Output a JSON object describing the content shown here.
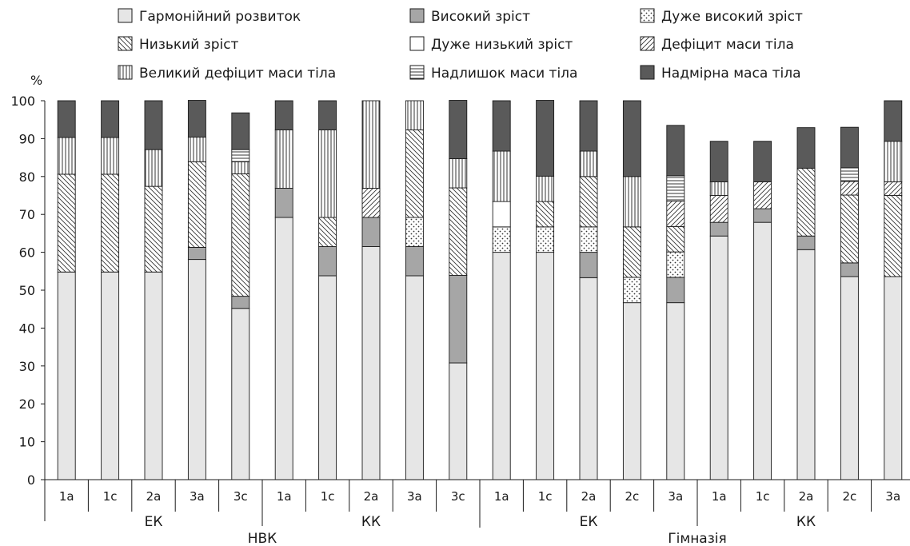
{
  "chart_data": {
    "type": "bar",
    "stacked": true,
    "ylabel": "%",
    "ylim": [
      0,
      100
    ],
    "yticks": [
      0,
      10,
      20,
      30,
      40,
      50,
      60,
      70,
      80,
      90,
      100
    ],
    "grid": false,
    "legend_position": "top",
    "categories": [
      "1а",
      "1с",
      "2а",
      "3а",
      "3с",
      "1а",
      "1с",
      "2а",
      "3а",
      "3с",
      "1а",
      "1с",
      "2а",
      "2с",
      "3а",
      "1а",
      "1с",
      "2а",
      "2с",
      "3а"
    ],
    "sub_groups": [
      {
        "label": "ЕК",
        "start": 0,
        "end": 4
      },
      {
        "label": "КК",
        "start": 5,
        "end": 9
      },
      {
        "label": "ЕК",
        "start": 10,
        "end": 14
      },
      {
        "label": "КК",
        "start": 15,
        "end": 19
      }
    ],
    "top_groups": [
      {
        "label": "НВК",
        "start": 0,
        "end": 9
      },
      {
        "label": "Гімназія",
        "start": 10,
        "end": 19
      }
    ],
    "series": [
      {
        "name": "Гармонійний розвиток",
        "color": "#e6e6e6",
        "pattern": "solid-light",
        "values": [
          54.8,
          54.8,
          54.8,
          58.1,
          45.2,
          69.2,
          53.8,
          61.5,
          53.8,
          30.8,
          60.0,
          60.0,
          53.3,
          46.7,
          46.7,
          64.3,
          67.9,
          60.7,
          53.6,
          53.6
        ]
      },
      {
        "name": "Високий зріст",
        "color": "#a6a6a6",
        "pattern": "solid-mid",
        "values": [
          0,
          0,
          0,
          3.2,
          3.2,
          7.7,
          7.7,
          7.7,
          7.7,
          23.1,
          0,
          0,
          6.7,
          0,
          6.7,
          3.6,
          3.6,
          3.6,
          3.6,
          0
        ]
      },
      {
        "name": "Дуже високий зріст",
        "color": "#ffffff",
        "pattern": "dots",
        "values": [
          0,
          0,
          0,
          0,
          0,
          0,
          0,
          0,
          7.7,
          0,
          6.7,
          6.7,
          6.7,
          6.7,
          6.7,
          0,
          0,
          0,
          0,
          0
        ]
      },
      {
        "name": "Низький зріст",
        "color": "#ffffff",
        "pattern": "diag-back",
        "values": [
          25.8,
          25.8,
          22.6,
          22.6,
          32.3,
          0,
          7.7,
          0,
          23.1,
          23.1,
          0,
          6.7,
          13.3,
          13.3,
          6.7,
          0,
          0,
          17.9,
          17.9,
          21.4
        ]
      },
      {
        "name": "Дуже низький зріст",
        "color": "#ffffff",
        "pattern": "blank",
        "values": [
          0,
          0,
          0,
          0,
          0,
          0,
          0,
          0,
          0,
          0,
          6.7,
          0,
          0,
          0,
          0,
          0,
          0,
          0,
          0,
          0
        ]
      },
      {
        "name": "Дефіцит маси тіла",
        "color": "#ffffff",
        "pattern": "diag-fwd",
        "values": [
          0,
          0,
          0,
          0,
          0,
          0,
          0,
          7.7,
          0,
          0,
          0,
          0,
          0,
          0,
          6.7,
          7.1,
          7.1,
          0,
          3.6,
          3.6
        ]
      },
      {
        "name": "Великий дефіцит маси тіла",
        "color": "#ffffff",
        "pattern": "vert",
        "values": [
          9.7,
          9.7,
          9.7,
          6.5,
          3.2,
          15.4,
          23.1,
          23.1,
          7.7,
          7.7,
          13.3,
          6.7,
          6.7,
          13.3,
          0,
          3.6,
          0,
          0,
          0,
          10.7
        ]
      },
      {
        "name": "Надлишок маси тіла",
        "color": "#ffffff",
        "pattern": "horiz",
        "values": [
          0,
          0,
          0,
          0,
          3.2,
          0,
          0,
          0,
          0,
          0,
          0,
          0,
          0,
          0,
          6.7,
          0,
          0,
          0,
          3.6,
          0
        ]
      },
      {
        "name": "Надмірна маса тіла",
        "color": "#5a5a5a",
        "pattern": "solid-dark",
        "values": [
          9.7,
          9.7,
          12.9,
          9.7,
          9.7,
          7.7,
          7.7,
          0,
          0,
          15.4,
          13.3,
          20.0,
          13.3,
          20.0,
          13.3,
          10.7,
          10.7,
          10.7,
          10.7,
          10.7
        ]
      }
    ],
    "legend_order": [
      0,
      1,
      2,
      3,
      4,
      5,
      6,
      7,
      8
    ]
  }
}
